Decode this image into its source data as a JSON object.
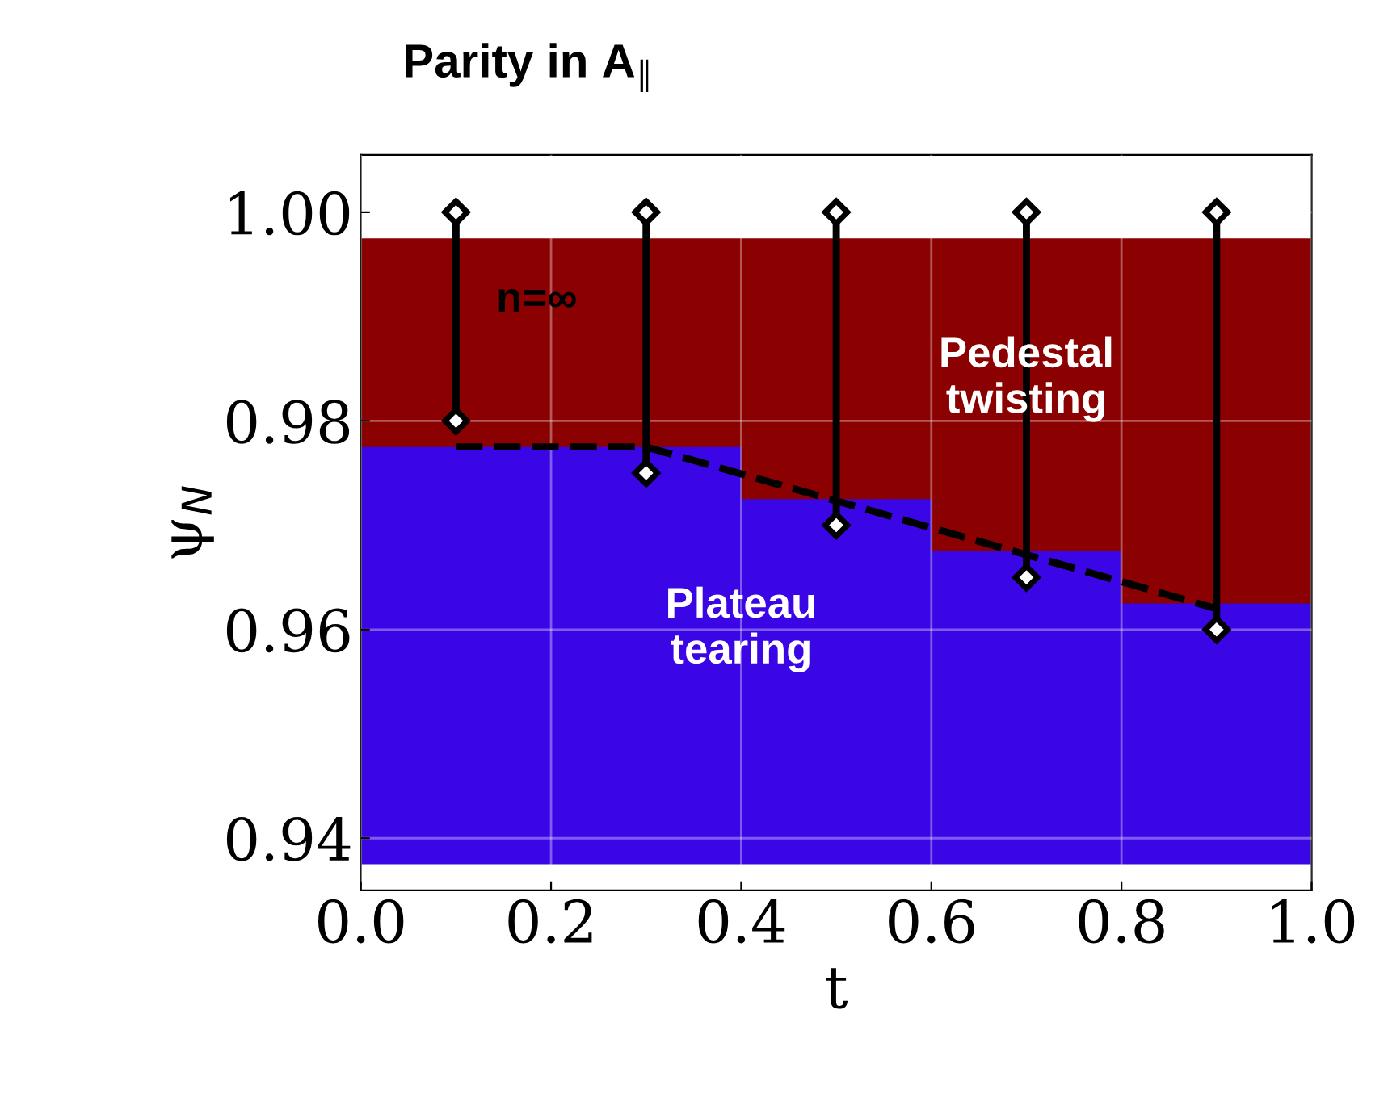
{
  "chart_data": {
    "type": "area",
    "title": "Parity in A$_{∥}$",
    "xlabel": "t",
    "ylabel": "ψ$_{N}$",
    "series": [
      {
        "color": "#8b0000",
        "x": [
          0.0,
          0.2,
          0.4,
          0.6,
          0.8,
          1.0
        ],
        "values": [
          0.9975,
          0.9975,
          0.9975,
          0.9975,
          0.9975,
          0.9975
        ]
      },
      {
        "color": "#3a06e6",
        "x": [
          0.0,
          0.2,
          0.4,
          0.6,
          0.8,
          1.0
        ],
        "values": [
          0.9775,
          0.9775,
          0.9725,
          0.9675,
          0.9625,
          0.9625
        ]
      },
      {
        "type": "line",
        "color": "#000000",
        "x": [
          0.1,
          0.1
        ],
        "values": [
          0.98,
          1.0
        ],
        "marker": "diamond"
      },
      {
        "type": "line",
        "color": "#000000",
        "x": [
          0.3,
          0.3
        ],
        "values": [
          0.975,
          1.0
        ],
        "marker": "diamond"
      },
      {
        "type": "line",
        "color": "#000000",
        "x": [
          0.5,
          0.5
        ],
        "values": [
          0.97,
          1.0
        ],
        "marker": "diamond"
      },
      {
        "type": "line",
        "color": "#000000",
        "x": [
          0.7,
          0.7
        ],
        "values": [
          0.965,
          1.0
        ],
        "marker": "diamond"
      },
      {
        "type": "line",
        "color": "#000000",
        "x": [
          0.9,
          0.9
        ],
        "values": [
          0.96,
          1.0
        ],
        "marker": "diamond"
      },
      {
        "type": "line",
        "color": "#000000",
        "x": [
          0.1,
          0.3,
          0.9
        ],
        "values": [
          0.9775,
          0.9775,
          0.962
        ],
        "line_style": "dashed",
        "marker": "none"
      }
    ],
    "annotations": [
      "n=∞",
      "Pedestal\ntwisting",
      "Plateau\ntearing"
    ],
    "xlim": [
      0.0,
      1.0
    ],
    "ylim": [
      0.935,
      1.0055
    ],
    "xticks": [
      {
        "value": 0.0,
        "label": "0.0"
      },
      0.2,
      0.4,
      0.6,
      0.8,
      {
        "value": 1.0,
        "label": "1.0"
      }
    ],
    "yticks": [
      0.94,
      0.96,
      0.98,
      {
        "value": 1.0,
        "label": "1.00"
      }
    ],
    "bands": [
      {
        "axis": "y",
        "from": 0.935,
        "to": 0.9375,
        "color": "#ffffff"
      }
    ],
    "grid": true
  }
}
